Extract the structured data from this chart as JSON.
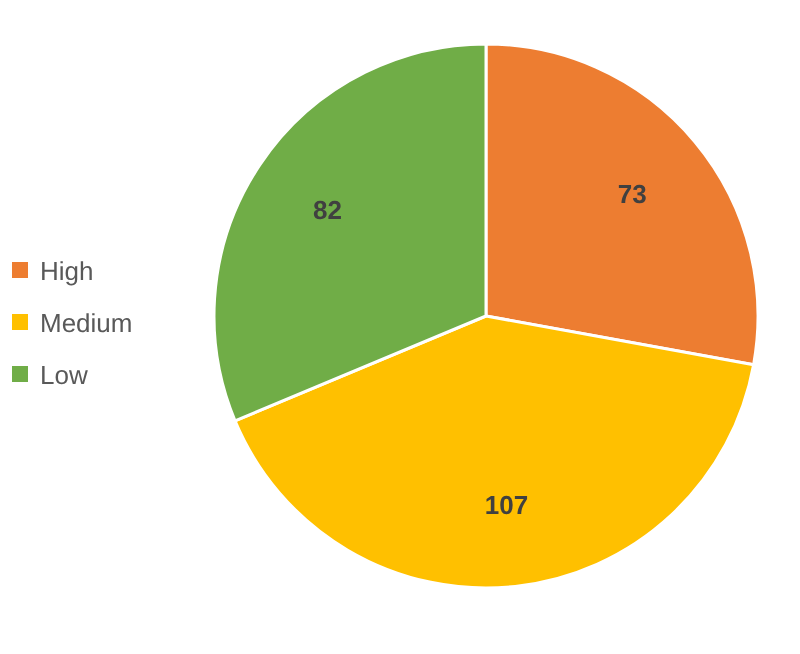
{
  "chart_data": {
    "type": "pie",
    "categories": [
      "High",
      "Medium",
      "Low"
    ],
    "values": [
      73,
      107,
      82
    ],
    "colors": [
      "#ed7d31",
      "#ffc000",
      "#70ad47"
    ],
    "legend": "left",
    "data_labels": true
  }
}
